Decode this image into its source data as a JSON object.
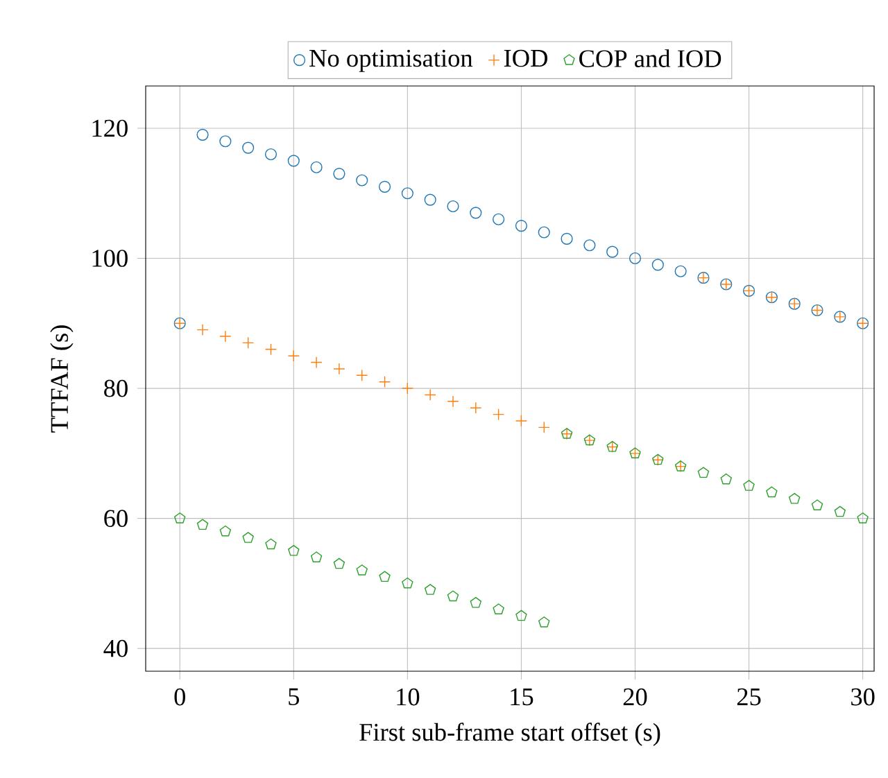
{
  "chart_data": {
    "type": "scatter",
    "xlabel": "First sub-frame start offset (s)",
    "ylabel": "TTFAF (s)",
    "x": [
      0,
      1,
      2,
      3,
      4,
      5,
      6,
      7,
      8,
      9,
      10,
      11,
      12,
      13,
      14,
      15,
      16,
      17,
      18,
      19,
      20,
      21,
      22,
      23,
      24,
      25,
      26,
      27,
      28,
      29,
      30
    ],
    "series": [
      {
        "name": "No optimisation",
        "color": "#1f77b4",
        "marker": "circle",
        "values": [
          90,
          119,
          118,
          117,
          116,
          115,
          114,
          113,
          112,
          111,
          110,
          109,
          108,
          107,
          106,
          105,
          104,
          103,
          102,
          101,
          100,
          99,
          98,
          97,
          96,
          95,
          94,
          93,
          92,
          91,
          90
        ]
      },
      {
        "name": "IOD",
        "color": "#ff7f0e",
        "marker": "plus",
        "values": [
          90,
          89,
          88,
          87,
          86,
          85,
          84,
          83,
          82,
          81,
          80,
          79,
          78,
          77,
          76,
          75,
          74,
          73,
          72,
          71,
          70,
          69,
          68,
          97,
          96,
          95,
          94,
          93,
          92,
          91,
          90
        ]
      },
      {
        "name": "COP and IOD",
        "color": "#2ca02c",
        "values": [
          60,
          59,
          58,
          57,
          56,
          55,
          54,
          53,
          52,
          51,
          50,
          49,
          48,
          47,
          46,
          45,
          44,
          73,
          72,
          71,
          70,
          69,
          68,
          67,
          66,
          65,
          64,
          63,
          62,
          61,
          60
        ]
      }
    ],
    "xlim": [
      -1.5,
      30.5
    ],
    "ylim": [
      36.5,
      126.5
    ],
    "xticks": [
      0,
      5,
      10,
      15,
      20,
      25,
      30
    ],
    "yticks": [
      40,
      60,
      80,
      100,
      120
    ],
    "grid": true,
    "legend": "top"
  }
}
